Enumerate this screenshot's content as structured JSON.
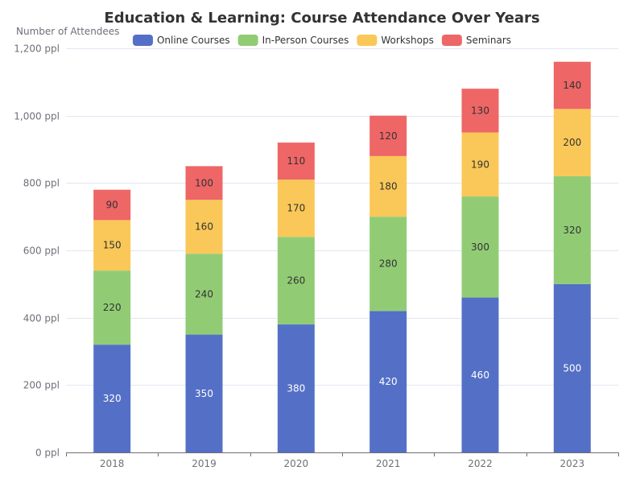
{
  "chart_data": {
    "type": "bar",
    "stacked": true,
    "title": "Education & Learning: Course Attendance Over Years",
    "ylabel": "Number of Attendees",
    "xlabel": "",
    "categories": [
      "2018",
      "2019",
      "2020",
      "2021",
      "2022",
      "2023"
    ],
    "ylim": [
      0,
      1200
    ],
    "ytick_values": [
      0,
      200,
      400,
      600,
      800,
      1000,
      1200
    ],
    "ytick_labels": [
      "0 ppl",
      "200 ppl",
      "400 ppl",
      "600 ppl",
      "800 ppl",
      "1,000 ppl",
      "1,200 ppl"
    ],
    "grid": true,
    "legend_position": "top",
    "series": [
      {
        "name": "Online Courses",
        "color": "#5470c6",
        "label_color": "#ffffff",
        "values": [
          320,
          350,
          380,
          420,
          460,
          500
        ]
      },
      {
        "name": "In-Person Courses",
        "color": "#91cc75",
        "label_color": "#333333",
        "values": [
          220,
          240,
          260,
          280,
          300,
          320
        ]
      },
      {
        "name": "Workshops",
        "color": "#fac858",
        "label_color": "#333333",
        "values": [
          150,
          160,
          170,
          180,
          190,
          200
        ]
      },
      {
        "name": "Seminars",
        "color": "#ee6666",
        "label_color": "#333333",
        "values": [
          90,
          100,
          110,
          120,
          130,
          140
        ]
      }
    ]
  }
}
